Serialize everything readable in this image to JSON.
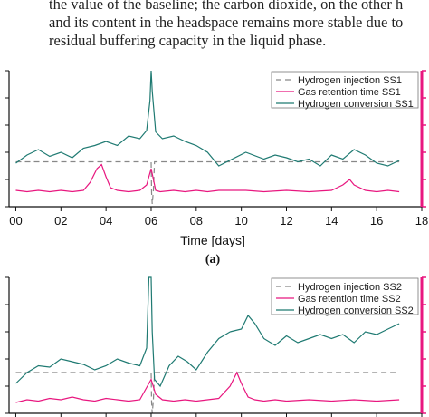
{
  "text": {
    "line1": "the value of the baseline; the carbon dioxide, on the other h",
    "line2": "and its content in the headspace remains more stable due to",
    "line3": "residual buffering capacity in the liquid phase."
  },
  "colors": {
    "injection": "#888888",
    "retention": "#e8177f",
    "conversion": "#1f7a72",
    "right_axis": "#e8177f"
  },
  "chart_data": [
    {
      "type": "line",
      "panel_label": "(a)",
      "xlabel": "Time [days]",
      "x_ticks": [
        "00",
        "02",
        "04",
        "06",
        "08",
        "10",
        "12",
        "14",
        "16",
        "18"
      ],
      "xlim": [
        -0.3,
        18
      ],
      "ylim": [
        0,
        100
      ],
      "legend": "top-right",
      "series": [
        {
          "name": "Hydrogen injection SS1",
          "style": "dashed",
          "x": [
            0,
            6.0,
            6.02,
            6.05,
            6.1,
            6.15,
            9,
            10.2,
            17
          ],
          "y": [
            33,
            33,
            10,
            2,
            12,
            33,
            33,
            33,
            33
          ]
        },
        {
          "name": "Gas retention time SS1",
          "style": "solid",
          "x": [
            0,
            0.5,
            1,
            1.5,
            2,
            2.5,
            3,
            3.3,
            3.6,
            3.8,
            4.0,
            4.2,
            4.5,
            5,
            5.5,
            5.8,
            6.0,
            6.1,
            6.2,
            6.4,
            7,
            7.5,
            8,
            8.5,
            9,
            10.2,
            11,
            12,
            13,
            14,
            14.5,
            14.8,
            15.0,
            15.5,
            16,
            16.5,
            17
          ],
          "y": [
            12,
            11,
            12,
            11,
            12,
            11,
            12,
            18,
            28,
            31,
            22,
            14,
            12,
            11,
            12,
            16,
            28,
            20,
            12,
            11,
            12,
            11,
            12,
            11,
            12,
            12,
            11,
            12,
            11,
            12,
            16,
            20,
            16,
            12,
            11,
            12,
            11
          ]
        },
        {
          "name": "Hydrogen conversion SS1",
          "style": "solid",
          "x": [
            0,
            0.5,
            1,
            1.5,
            2,
            2.5,
            3,
            3.5,
            4,
            4.5,
            5,
            5.5,
            5.8,
            5.95,
            6.0,
            6.05,
            6.2,
            6.5,
            7,
            7.5,
            8,
            8.5,
            9,
            10.2,
            11,
            11.5,
            12,
            12.5,
            13,
            13.5,
            14,
            14.5,
            15,
            15.5,
            16,
            16.5,
            17
          ],
          "y": [
            32,
            38,
            42,
            37,
            40,
            36,
            43,
            45,
            48,
            45,
            52,
            50,
            56,
            78,
            100,
            85,
            55,
            50,
            52,
            48,
            45,
            40,
            30,
            40,
            35,
            38,
            36,
            33,
            35,
            30,
            38,
            35,
            42,
            38,
            32,
            30,
            34
          ]
        }
      ]
    },
    {
      "type": "line",
      "legend": "top-right",
      "xlim": [
        -0.3,
        18
      ],
      "ylim": [
        0,
        100
      ],
      "series": [
        {
          "name": "Hydrogen injection SS2",
          "style": "dashed",
          "x": [
            0,
            6.0,
            6.02,
            6.05,
            6.1,
            6.15,
            17
          ],
          "y": [
            30,
            30,
            8,
            0,
            10,
            30,
            30
          ]
        },
        {
          "name": "Gas retention time SS2",
          "style": "solid",
          "x": [
            0,
            0.5,
            1,
            1.5,
            2,
            2.5,
            3,
            3.5,
            4,
            4.5,
            5,
            5.5,
            6.0,
            6.2,
            6.5,
            7,
            7.5,
            8,
            8.5,
            9,
            9.5,
            9.8,
            10.0,
            10.3,
            10.6,
            11,
            11.5,
            12,
            13,
            14,
            15,
            16,
            17
          ],
          "y": [
            8,
            10,
            9,
            11,
            10,
            12,
            10,
            9,
            11,
            10,
            9,
            10,
            25,
            14,
            10,
            9,
            10,
            9,
            10,
            11,
            20,
            30,
            22,
            12,
            10,
            9,
            10,
            9,
            10,
            9,
            10,
            9,
            10
          ]
        },
        {
          "name": "Hydrogen conversion SS2",
          "style": "solid",
          "x": [
            0,
            0.5,
            1,
            1.5,
            2,
            2.5,
            3,
            3.5,
            4,
            4.5,
            5,
            5.5,
            5.8,
            5.9,
            6.0,
            6.05,
            6.15,
            6.4,
            6.8,
            7.2,
            7.6,
            8,
            8.5,
            9,
            9.5,
            10,
            10.3,
            10.6,
            11,
            11.5,
            12,
            12.5,
            13,
            13.5,
            14,
            14.5,
            15,
            15.5,
            16,
            16.5,
            17
          ],
          "y": [
            22,
            30,
            35,
            34,
            40,
            38,
            36,
            32,
            35,
            40,
            37,
            35,
            48,
            100,
            100,
            60,
            25,
            20,
            35,
            42,
            38,
            32,
            45,
            55,
            60,
            62,
            72,
            66,
            55,
            50,
            57,
            52,
            55,
            58,
            55,
            58,
            52,
            60,
            58,
            62,
            66
          ]
        }
      ]
    }
  ]
}
